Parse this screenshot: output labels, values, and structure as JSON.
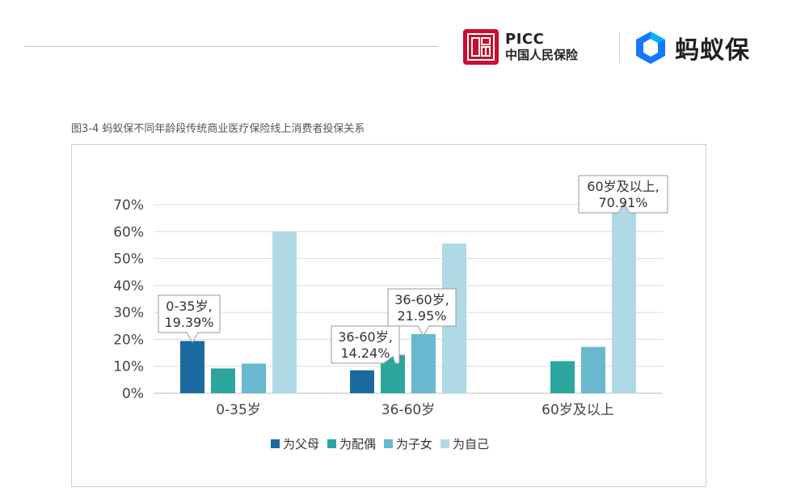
{
  "header": {
    "picc_en": "PICC",
    "picc_cn": "中国人民保险",
    "ant_name": "蚂蚁保"
  },
  "caption": "图3-4 蚂蚁保不同年龄段传统商业医疗保险线上消费者投保关系",
  "legend": [
    "为父母",
    "为配偶",
    "为子女",
    "为自己"
  ],
  "colors": {
    "parents": "#1a6aa0",
    "spouse": "#2aa69e",
    "children": "#6ab8cf",
    "self": "#b0d9e6",
    "brand_red": "#c8102e",
    "brand_blue": "#1677ff"
  },
  "chart_data": {
    "type": "bar",
    "categories": [
      "0-35岁",
      "36-60岁",
      "60岁及以上"
    ],
    "series": [
      {
        "name": "为父母",
        "values": [
          19.39,
          8.5,
          null
        ]
      },
      {
        "name": "为配偶",
        "values": [
          9.2,
          14.24,
          11.9
        ]
      },
      {
        "name": "为子女",
        "values": [
          11.0,
          21.95,
          17.2
        ]
      },
      {
        "name": "为自己",
        "values": [
          60.1,
          55.6,
          70.91
        ]
      }
    ],
    "y_ticks": [
      "0%",
      "10%",
      "20%",
      "30%",
      "40%",
      "50%",
      "60%",
      "70%"
    ],
    "ylim": [
      0,
      70
    ],
    "grid": true,
    "legend_position": "bottom",
    "annotations": [
      {
        "category": 0,
        "series": 0,
        "line1": "0-35岁,",
        "line2": "19.39%"
      },
      {
        "category": 1,
        "series": 1,
        "line1": "36-60岁,",
        "line2": "14.24%"
      },
      {
        "category": 1,
        "series": 2,
        "line1": "36-60岁,",
        "line2": "21.95%"
      },
      {
        "category": 2,
        "series": 3,
        "line1": "60岁及以上,",
        "line2": "70.91%"
      }
    ]
  }
}
